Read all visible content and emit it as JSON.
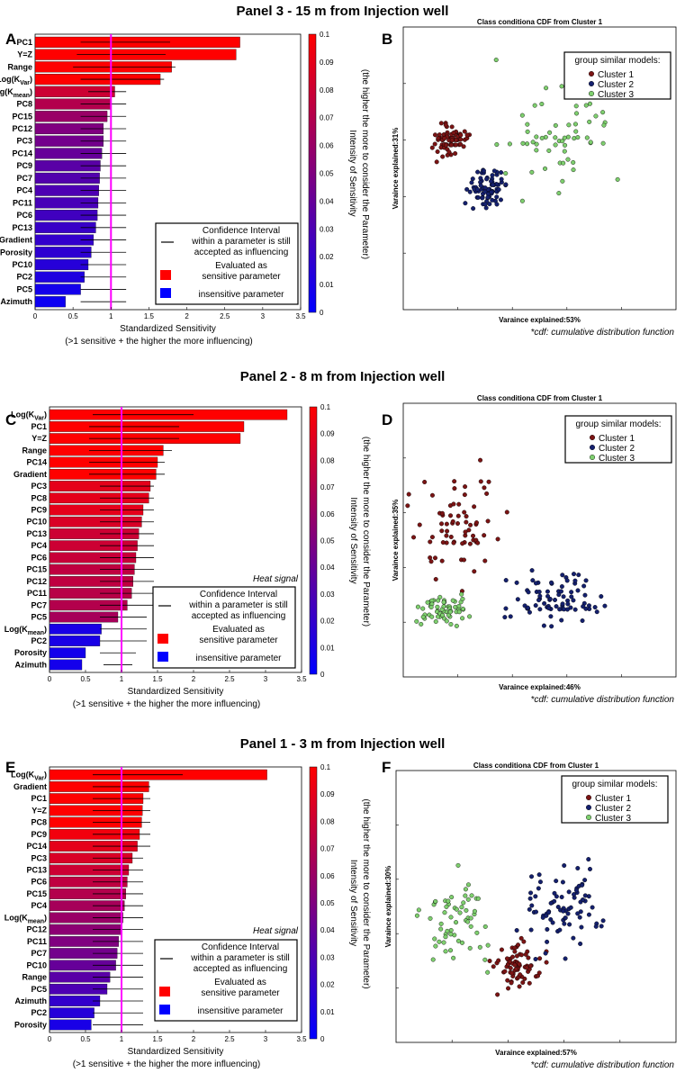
{
  "panels": [
    {
      "title": "Panel 3 - 15 m from Injection well",
      "bar_label": "A",
      "scatter_label": "B",
      "bar": {
        "categories": [
          "PC1",
          "Y=Z",
          "Range",
          "Log(K_Var)",
          "Log(K_mean)",
          "PC8",
          "PC15",
          "PC12",
          "PC3",
          "PC14",
          "PC9",
          "PC7",
          "PC4",
          "PC11",
          "PC6",
          "PC13",
          "Gradient",
          "Porosity",
          "PC10",
          "PC2",
          "PC5",
          "Azimuth"
        ],
        "values": [
          2.7,
          2.65,
          1.8,
          1.65,
          1.05,
          1.0,
          0.95,
          0.9,
          0.9,
          0.88,
          0.86,
          0.85,
          0.84,
          0.83,
          0.82,
          0.8,
          0.77,
          0.74,
          0.7,
          0.65,
          0.6,
          0.4
        ],
        "ci": [
          [
            0.6,
            1.78
          ],
          [
            0.55,
            1.72
          ],
          [
            0.5,
            1.85
          ],
          [
            0.6,
            1.7
          ],
          [
            0.7,
            1.2
          ],
          [
            0.6,
            1.2
          ],
          [
            0.6,
            1.2
          ],
          [
            0.6,
            1.2
          ],
          [
            0.6,
            1.2
          ],
          [
            0.6,
            1.2
          ],
          [
            0.6,
            1.2
          ],
          [
            0.6,
            1.2
          ],
          [
            0.6,
            1.2
          ],
          [
            0.6,
            1.2
          ],
          [
            0.6,
            1.2
          ],
          [
            0.6,
            1.2
          ],
          [
            0.6,
            1.2
          ],
          [
            0.6,
            1.2
          ],
          [
            0.6,
            1.2
          ],
          [
            0.6,
            1.2
          ],
          [
            0.6,
            1.2
          ],
          [
            0.6,
            1.2
          ]
        ],
        "intensity": [
          0.1,
          0.1,
          0.1,
          0.1,
          0.08,
          0.07,
          0.06,
          0.05,
          0.045,
          0.04,
          0.035,
          0.032,
          0.03,
          0.028,
          0.025,
          0.022,
          0.02,
          0.018,
          0.015,
          0.012,
          0.008,
          0.005
        ],
        "heat_signal": ""
      },
      "scatter": {
        "title": "Class conditiona CDF from Cluster 1",
        "ylabel": "Varaince explained:31%",
        "xlabel": "Varaince explained:53%"
      }
    },
    {
      "title": "Panel 2 - 8 m from Injection well",
      "bar_label": "C",
      "scatter_label": "D",
      "bar": {
        "categories": [
          "Log(K_Var)",
          "PC1",
          "Y=Z",
          "Range",
          "PC14",
          "Gradient",
          "PC3",
          "PC8",
          "PC9",
          "PC10",
          "PC13",
          "PC4",
          "PC6",
          "PC15",
          "PC12",
          "PC11",
          "PC7",
          "PC5",
          "Log(K_mean)",
          "PC2",
          "Porosity",
          "Azimuth"
        ],
        "values": [
          3.3,
          2.7,
          2.65,
          1.58,
          1.5,
          1.48,
          1.4,
          1.38,
          1.3,
          1.28,
          1.24,
          1.22,
          1.2,
          1.18,
          1.16,
          1.14,
          1.08,
          0.95,
          0.72,
          0.7,
          0.5,
          0.45
        ],
        "ci": [
          [
            0.6,
            2.0
          ],
          [
            0.55,
            1.8
          ],
          [
            0.55,
            1.8
          ],
          [
            0.55,
            1.7
          ],
          [
            0.55,
            1.6
          ],
          [
            0.55,
            1.6
          ],
          [
            0.7,
            1.45
          ],
          [
            0.7,
            1.45
          ],
          [
            0.7,
            1.45
          ],
          [
            0.7,
            1.45
          ],
          [
            0.7,
            1.45
          ],
          [
            0.7,
            1.45
          ],
          [
            0.7,
            1.45
          ],
          [
            0.7,
            1.45
          ],
          [
            0.7,
            1.45
          ],
          [
            0.7,
            1.45
          ],
          [
            0.7,
            1.45
          ],
          [
            0.7,
            1.35
          ],
          [
            0.7,
            1.35
          ],
          [
            0.7,
            1.35
          ],
          [
            0.7,
            1.2
          ],
          [
            0.75,
            1.15
          ]
        ],
        "intensity": [
          0.1,
          0.1,
          0.1,
          0.1,
          0.1,
          0.1,
          0.09,
          0.09,
          0.09,
          0.085,
          0.08,
          0.08,
          0.078,
          0.075,
          0.075,
          0.072,
          0.07,
          0.065,
          0.01,
          0.01,
          0.008,
          0.008
        ],
        "heat_signal": "Heat signal"
      },
      "scatter": {
        "title": "Class conditiona CDF from Cluster 1",
        "ylabel": "Varaince explained:35%",
        "xlabel": "Varaince explained:46%"
      }
    },
    {
      "title": "Panel 1 - 3 m from Injection well",
      "bar_label": "E",
      "scatter_label": "F",
      "bar": {
        "categories": [
          "Log(K_Var)",
          "Gradient",
          "PC1",
          "Y=Z",
          "PC8",
          "PC9",
          "PC14",
          "PC3",
          "PC13",
          "PC6",
          "PC15",
          "PC4",
          "Log(K_mean)",
          "PC12",
          "PC11",
          "PC7",
          "PC10",
          "Range",
          "PC5",
          "Azimuth",
          "PC2",
          "Porosity"
        ],
        "values": [
          3.02,
          1.38,
          1.3,
          1.29,
          1.28,
          1.25,
          1.22,
          1.15,
          1.1,
          1.08,
          1.06,
          1.04,
          1.02,
          1.0,
          0.96,
          0.94,
          0.92,
          0.84,
          0.8,
          0.7,
          0.62,
          0.58
        ],
        "ci": [
          [
            0.6,
            1.85
          ],
          [
            0.6,
            1.4
          ],
          [
            0.6,
            1.4
          ],
          [
            0.6,
            1.4
          ],
          [
            0.6,
            1.4
          ],
          [
            0.6,
            1.4
          ],
          [
            0.6,
            1.4
          ],
          [
            0.6,
            1.3
          ],
          [
            0.6,
            1.3
          ],
          [
            0.6,
            1.3
          ],
          [
            0.6,
            1.3
          ],
          [
            0.6,
            1.3
          ],
          [
            0.6,
            1.3
          ],
          [
            0.6,
            1.3
          ],
          [
            0.6,
            1.3
          ],
          [
            0.6,
            1.3
          ],
          [
            0.6,
            1.3
          ],
          [
            0.6,
            1.3
          ],
          [
            0.6,
            1.3
          ],
          [
            0.6,
            1.3
          ],
          [
            0.6,
            1.3
          ],
          [
            0.6,
            1.3
          ]
        ],
        "intensity": [
          0.1,
          0.1,
          0.1,
          0.1,
          0.1,
          0.095,
          0.09,
          0.085,
          0.08,
          0.075,
          0.07,
          0.065,
          0.06,
          0.055,
          0.05,
          0.045,
          0.04,
          0.035,
          0.03,
          0.02,
          0.015,
          0.01
        ],
        "heat_signal": "Heat signal"
      },
      "scatter": {
        "title": "Class conditiona CDF from Cluster 1",
        "ylabel": "Varaince explained:30%",
        "xlabel": "Varaince explained:57%"
      }
    }
  ],
  "common": {
    "x_ticks": [
      "0",
      "0.5",
      "1",
      "1.5",
      "2",
      "2.5",
      "3",
      "3.5"
    ],
    "x_max": 3.5,
    "threshold": 1,
    "xlabel": "Standardized Sensitivity",
    "xlabel2": "(>1 sensitive + the higher the more influencing)",
    "colorbar_ticks": [
      "0",
      "0.01",
      "0.02",
      "0.03",
      "0.04",
      "0.05",
      "0.06",
      "0.07",
      "0.08",
      "0.09",
      "0.1"
    ],
    "colorbar_label1": "Intensity of Sensitivity",
    "colorbar_label2": "(the higher the more to consider the Parameter)",
    "legend": {
      "ci_line1": "Confidence Interval",
      "ci_line2": "within a parameter is still",
      "ci_line3": "accepted as influencing",
      "sens_line1": "Evaluated as",
      "sens_line2": "sensitive parameter",
      "insens": "insensitive parameter"
    },
    "scatter_legend": {
      "title": "group similar models:",
      "c1": "Cluster 1",
      "c2": "Cluster 2",
      "c3": "Cluster 3"
    },
    "footnote": "*cdf: cumulative distribution function",
    "colors": {
      "cluster1": "#7b1414",
      "cluster2": "#14206e",
      "cluster3": "#7ecf6e",
      "threshold": "#ff00ff",
      "sensitive": "#ff0000",
      "insensitive": "#0000ff"
    }
  }
}
